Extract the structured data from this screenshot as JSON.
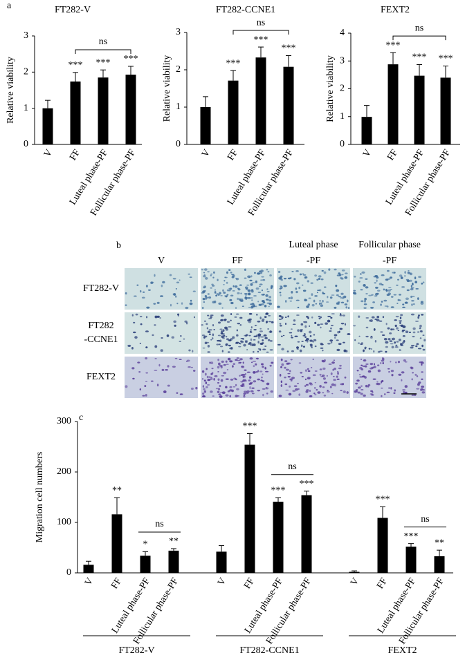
{
  "panel_labels": [
    "a",
    "b",
    "c"
  ],
  "chart_data": [
    {
      "type": "bar",
      "title": "FT282-V",
      "ylabel": "Relative viability",
      "categories": [
        "V",
        "FF",
        "Luteal phase-PF",
        "Follicular phase-PF"
      ],
      "values": [
        1.0,
        1.74,
        1.85,
        1.93
      ],
      "errors": [
        0.22,
        0.25,
        0.21,
        0.23
      ],
      "annotations": [
        null,
        "***",
        "***",
        "***"
      ],
      "brackets": [
        {
          "label": "ns",
          "span": [
            1,
            3
          ]
        }
      ],
      "ylim": [
        0,
        3
      ],
      "yticks": [
        0,
        1,
        2,
        3
      ],
      "color": "#000000"
    },
    {
      "type": "bar",
      "title": "FT282-CCNE1",
      "ylabel": "Relative viability",
      "categories": [
        "V",
        "FF",
        "Luteal phase-PF",
        "Follicular phase-PF"
      ],
      "values": [
        1.0,
        1.71,
        2.33,
        2.08
      ],
      "errors": [
        0.28,
        0.27,
        0.28,
        0.3
      ],
      "annotations": [
        null,
        "***",
        "***",
        "***"
      ],
      "brackets": [
        {
          "label": "ns",
          "span": [
            1,
            3
          ]
        }
      ],
      "ylim": [
        0,
        3
      ],
      "yticks": [
        0,
        1,
        2,
        3
      ],
      "color": "#000000"
    },
    {
      "type": "bar",
      "title": "FEXT2",
      "ylabel": "Relative viability",
      "categories": [
        "V",
        "FF",
        "Luteal phase-PF",
        "Follicular phase-PF"
      ],
      "values": [
        0.99,
        2.88,
        2.47,
        2.4
      ],
      "errors": [
        0.41,
        0.42,
        0.4,
        0.42
      ],
      "annotations": [
        null,
        "***",
        "***",
        "***"
      ],
      "brackets": [
        {
          "label": "ns",
          "span": [
            1,
            3
          ]
        }
      ],
      "ylim": [
        0,
        4
      ],
      "yticks": [
        0,
        1,
        2,
        3,
        4
      ],
      "color": "#000000"
    },
    {
      "type": "bar",
      "ylabel": "Migration cell numbers",
      "categories": [
        "V",
        "FF",
        "Luteal phase-PF",
        "Follicular phase-PF",
        "V",
        "FF",
        "Luteal phase-PF",
        "Follicular phase-PF",
        "V",
        "FF",
        "Luteal phase-PF",
        "Follicular phase-PF"
      ],
      "values": [
        16,
        116,
        34,
        44,
        42,
        254,
        141,
        154,
        2,
        109,
        52,
        33
      ],
      "errors": [
        7,
        33,
        8,
        4,
        12,
        22,
        8,
        8,
        2,
        22,
        6,
        12
      ],
      "annotations": [
        null,
        "**",
        "*",
        "**",
        null,
        "***",
        "***",
        "***",
        null,
        "***",
        "***",
        "**"
      ],
      "brackets": [
        {
          "label": "ns",
          "span": [
            2,
            3
          ]
        },
        {
          "label": "ns",
          "span": [
            6,
            7
          ]
        },
        {
          "label": "ns",
          "span": [
            10,
            11
          ]
        }
      ],
      "groups": [
        {
          "name": "FT282-V",
          "span": [
            0,
            3
          ]
        },
        {
          "name": "FT282-CCNE1",
          "span": [
            4,
            7
          ]
        },
        {
          "name": "FEXT2",
          "span": [
            8,
            11
          ]
        }
      ],
      "ylim": [
        0,
        300
      ],
      "yticks": [
        0,
        100,
        200,
        300
      ],
      "color": "#000000"
    }
  ],
  "micrographs": {
    "columns": [
      [
        "V"
      ],
      [
        "FF"
      ],
      [
        "Luteal phase",
        "-PF"
      ],
      [
        "Follicular phase",
        "-PF"
      ]
    ],
    "rows": [
      [
        "FT282-V"
      ],
      [
        "FT282",
        "-CCNE1"
      ],
      [
        "FEXT2"
      ]
    ]
  }
}
